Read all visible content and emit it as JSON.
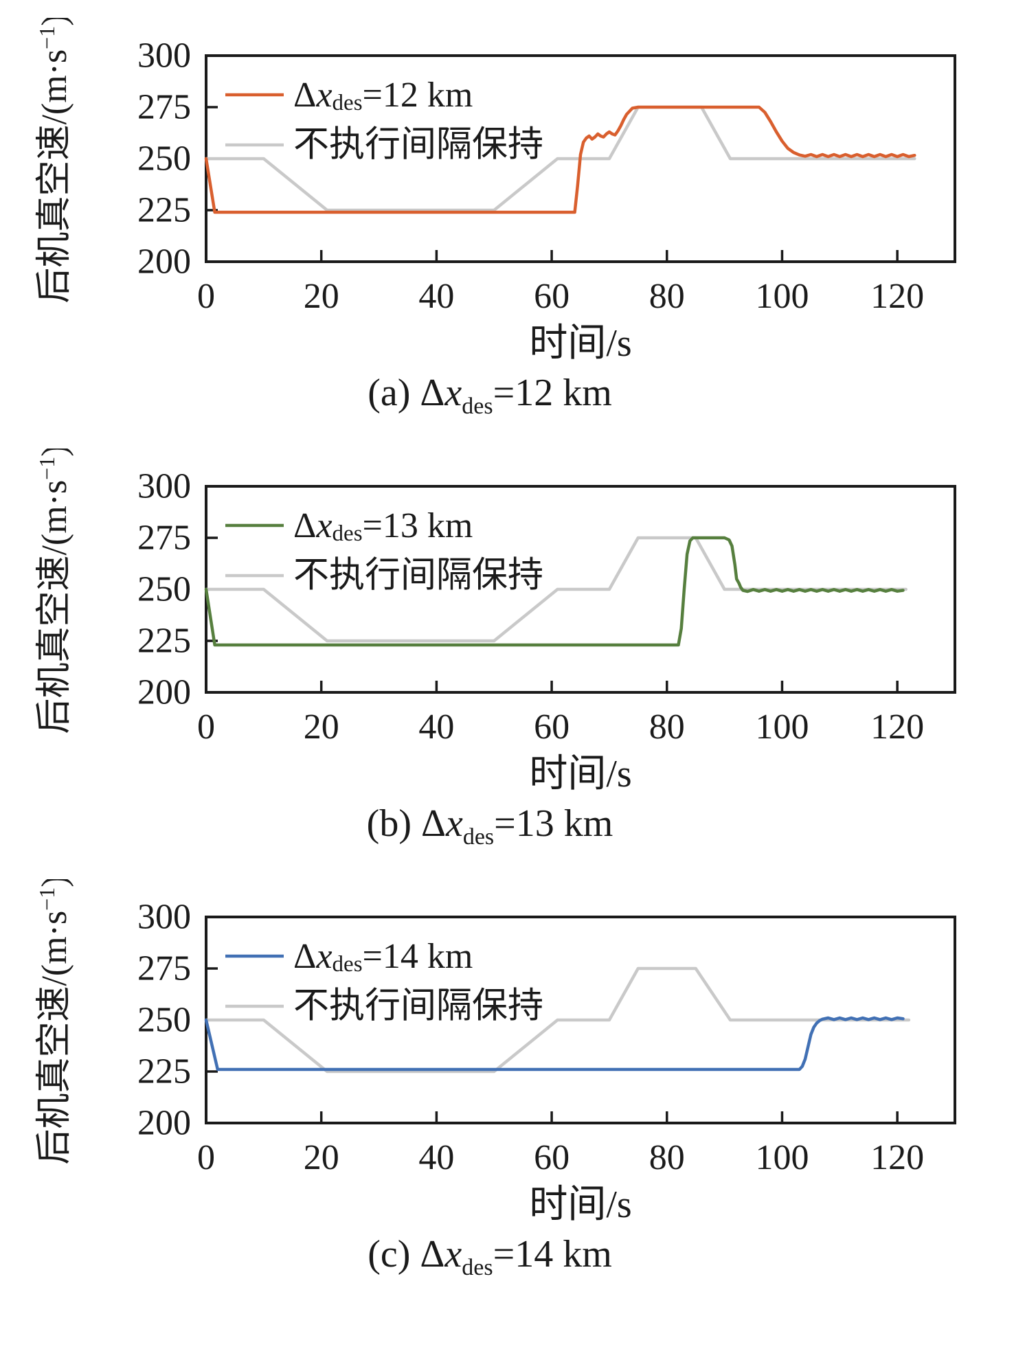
{
  "figure": {
    "background": "#ffffff",
    "axis_color": "#1a1a1a",
    "xlabel": "时间/s",
    "ylabel": {
      "main": "后机真空速/(m·s",
      "sup": "−1",
      "end": ")"
    },
    "uncontrolled_label": "不执行间隔保持",
    "uncontrolled_color": "#c9c9c9"
  },
  "chart_data": [
    {
      "type": "line",
      "panel": "a",
      "caption": {
        "prefix": "(a) ",
        "delta": "Δ",
        "var": "x",
        "sub": "des",
        "value": "=12 km"
      },
      "xlabel": "时间/s",
      "ylabel": "后机真空速/(m·s−1)",
      "xlim": [
        0,
        130
      ],
      "ylim": [
        200,
        300
      ],
      "xticks": [
        0,
        20,
        40,
        60,
        80,
        100,
        120
      ],
      "yticks": [
        200,
        225,
        250,
        275,
        300
      ],
      "grid": false,
      "legend_position": "top-left",
      "series": [
        {
          "name": "不执行间隔保持",
          "color": "#c9c9c9",
          "points": [
            [
              0,
              250
            ],
            [
              10,
              250
            ],
            [
              21,
              225
            ],
            [
              50,
              225
            ],
            [
              61,
              250
            ],
            [
              70,
              250
            ],
            [
              75,
              275
            ],
            [
              86,
              275
            ],
            [
              91,
              250
            ],
            [
              123,
              250
            ]
          ]
        },
        {
          "name": {
            "delta": "Δ",
            "var": "x",
            "sub": "des",
            "value": "=12 km"
          },
          "color": "#d95f2e",
          "points": [
            [
              0,
              250
            ],
            [
              1.5,
              224
            ],
            [
              64,
              224
            ],
            [
              64.5,
              237
            ],
            [
              65,
              252
            ],
            [
              65.5,
              258
            ],
            [
              66,
              260
            ],
            [
              66.5,
              261
            ],
            [
              67,
              259.5
            ],
            [
              67.5,
              260.5
            ],
            [
              68,
              262
            ],
            [
              68.5,
              261
            ],
            [
              69,
              260.5
            ],
            [
              69.5,
              262
            ],
            [
              70,
              263
            ],
            [
              70.5,
              262
            ],
            [
              71,
              261.5
            ],
            [
              71.5,
              263.5
            ],
            [
              72,
              266
            ],
            [
              72.5,
              269
            ],
            [
              73,
              271.5
            ],
            [
              74,
              274.5
            ],
            [
              75,
              275
            ],
            [
              96,
              275
            ],
            [
              97,
              272.5
            ],
            [
              98,
              268
            ],
            [
              99,
              263
            ],
            [
              100,
              258.5
            ],
            [
              101,
              255
            ],
            [
              102,
              253
            ],
            [
              103,
              251.8
            ],
            [
              104,
              251.2
            ],
            [
              105,
              252
            ],
            [
              106,
              251
            ],
            [
              107,
              252
            ],
            [
              108,
              251
            ],
            [
              109,
              252
            ],
            [
              110,
              251
            ],
            [
              111,
              252
            ],
            [
              112,
              251
            ],
            [
              113,
              252
            ],
            [
              114,
              251
            ],
            [
              115,
              252
            ],
            [
              116,
              251
            ],
            [
              117,
              252
            ],
            [
              118,
              251
            ],
            [
              119,
              252
            ],
            [
              120,
              251
            ],
            [
              121,
              252
            ],
            [
              122,
              251
            ],
            [
              123,
              251.6
            ]
          ]
        }
      ]
    },
    {
      "type": "line",
      "panel": "b",
      "caption": {
        "prefix": "(b) ",
        "delta": "Δ",
        "var": "x",
        "sub": "des",
        "value": "=13 km"
      },
      "xlabel": "时间/s",
      "ylabel": "后机真空速/(m·s−1)",
      "xlim": [
        0,
        130
      ],
      "ylim": [
        200,
        300
      ],
      "xticks": [
        0,
        20,
        40,
        60,
        80,
        100,
        120
      ],
      "yticks": [
        200,
        225,
        250,
        275,
        300
      ],
      "grid": false,
      "legend_position": "top-left",
      "series": [
        {
          "name": "不执行间隔保持",
          "color": "#c9c9c9",
          "points": [
            [
              0,
              250
            ],
            [
              10,
              250
            ],
            [
              21,
              225
            ],
            [
              50,
              225
            ],
            [
              61,
              250
            ],
            [
              70,
              250
            ],
            [
              75,
              275
            ],
            [
              85,
              275
            ],
            [
              90,
              250
            ],
            [
              121.5,
              250
            ]
          ]
        },
        {
          "name": {
            "delta": "Δ",
            "var": "x",
            "sub": "des",
            "value": "=13 km"
          },
          "color": "#567f3e",
          "points": [
            [
              0,
              250
            ],
            [
              1.5,
              223
            ],
            [
              82,
              223
            ],
            [
              82.5,
              231
            ],
            [
              83,
              250
            ],
            [
              83.5,
              267
            ],
            [
              84,
              273.5
            ],
            [
              84.5,
              275
            ],
            [
              90,
              275
            ],
            [
              90.8,
              274
            ],
            [
              91.3,
              271
            ],
            [
              91.8,
              262
            ],
            [
              92.1,
              255
            ],
            [
              92.5,
              253
            ],
            [
              92.8,
              251
            ],
            [
              93.2,
              249.5
            ],
            [
              94,
              249
            ],
            [
              95,
              249.9
            ],
            [
              96,
              249.1
            ],
            [
              97,
              249.9
            ],
            [
              98,
              249.1
            ],
            [
              99,
              249.9
            ],
            [
              100,
              249.1
            ],
            [
              101,
              249.9
            ],
            [
              102,
              249.1
            ],
            [
              103,
              249.9
            ],
            [
              104,
              249.1
            ],
            [
              105,
              249.9
            ],
            [
              106,
              249.1
            ],
            [
              107,
              249.9
            ],
            [
              108,
              249.1
            ],
            [
              109,
              249.9
            ],
            [
              110,
              249.1
            ],
            [
              111,
              249.9
            ],
            [
              112,
              249.1
            ],
            [
              113,
              249.9
            ],
            [
              114,
              249.1
            ],
            [
              115,
              249.9
            ],
            [
              116,
              249.1
            ],
            [
              117,
              249.9
            ],
            [
              118,
              249.1
            ],
            [
              119,
              249.9
            ],
            [
              120,
              249.1
            ],
            [
              121,
              249.5
            ]
          ]
        }
      ]
    },
    {
      "type": "line",
      "panel": "c",
      "caption": {
        "prefix": "(c) ",
        "delta": "Δ",
        "var": "x",
        "sub": "des",
        "value": "=14 km"
      },
      "xlabel": "时间/s",
      "ylabel": "后机真空速/(m·s−1)",
      "xlim": [
        0,
        130
      ],
      "ylim": [
        200,
        300
      ],
      "xticks": [
        0,
        20,
        40,
        60,
        80,
        100,
        120
      ],
      "yticks": [
        200,
        225,
        250,
        275,
        300
      ],
      "grid": false,
      "legend_position": "top-left",
      "series": [
        {
          "name": "不执行间隔保持",
          "color": "#c9c9c9",
          "points": [
            [
              0,
              250
            ],
            [
              10,
              250
            ],
            [
              21,
              225
            ],
            [
              50,
              225
            ],
            [
              61,
              250
            ],
            [
              70,
              250
            ],
            [
              75,
              275
            ],
            [
              85,
              275
            ],
            [
              91,
              250
            ],
            [
              122,
              250
            ]
          ]
        },
        {
          "name": {
            "delta": "Δ",
            "var": "x",
            "sub": "des",
            "value": "=14 km"
          },
          "color": "#4170b4",
          "points": [
            [
              0,
              250
            ],
            [
              2,
              226
            ],
            [
              103,
              226
            ],
            [
              103.5,
              227.5
            ],
            [
              104,
              231
            ],
            [
              104.5,
              237
            ],
            [
              105,
              243
            ],
            [
              105.5,
              246.5
            ],
            [
              106,
              248.5
            ],
            [
              106.5,
              249.7
            ],
            [
              107,
              250.4
            ],
            [
              108,
              251
            ],
            [
              109,
              250.2
            ],
            [
              110,
              251
            ],
            [
              111,
              250.2
            ],
            [
              112,
              251
            ],
            [
              113,
              250.2
            ],
            [
              114,
              251
            ],
            [
              115,
              250.2
            ],
            [
              116,
              251
            ],
            [
              117,
              250.2
            ],
            [
              118,
              251
            ],
            [
              119,
              250.2
            ],
            [
              120,
              251
            ],
            [
              121,
              250.6
            ]
          ]
        }
      ]
    }
  ]
}
